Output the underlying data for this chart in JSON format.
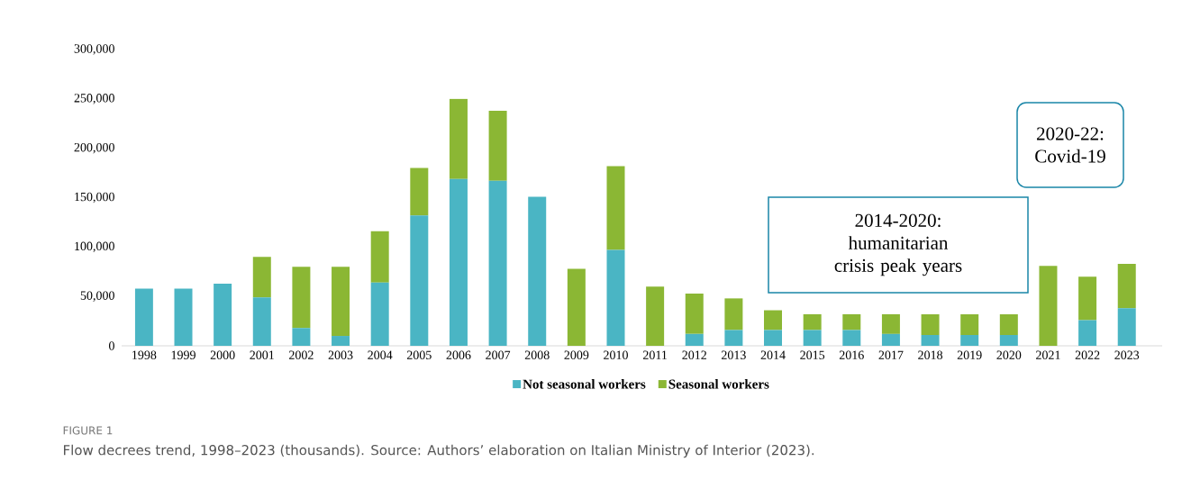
{
  "chart_data": {
    "type": "bar",
    "stacked": true,
    "categories": [
      "1998",
      "1999",
      "2000",
      "2001",
      "2002",
      "2003",
      "2004",
      "2005",
      "2006",
      "2007",
      "2008",
      "2009",
      "2010",
      "2011",
      "2012",
      "2013",
      "2014",
      "2015",
      "2016",
      "2017",
      "2018",
      "2019",
      "2020",
      "2021",
      "2022",
      "2023"
    ],
    "series": [
      {
        "name": "Not seasonal workers",
        "color": "#4ab5c4",
        "values": [
          58000,
          58000,
          63000,
          49000,
          18000,
          10000,
          64000,
          132000,
          169000,
          167000,
          151000,
          0,
          97000,
          0,
          12000,
          16000,
          16000,
          16000,
          16000,
          12000,
          11000,
          11000,
          11000,
          0,
          26000,
          38000
        ]
      },
      {
        "name": "Seasonal workers",
        "color": "#8bb734",
        "values": [
          0,
          0,
          0,
          41000,
          62000,
          70000,
          52000,
          48000,
          81000,
          71000,
          0,
          78000,
          85000,
          60000,
          41000,
          32000,
          20000,
          16000,
          16000,
          20000,
          21000,
          21000,
          21000,
          81000,
          44000,
          45000
        ]
      }
    ],
    "ylim": [
      0,
      300000
    ],
    "yticks": [
      0,
      {
        "value": 50000,
        "label": "50,000"
      },
      {
        "value": 100000,
        "label": "100,000"
      },
      {
        "value": 150000,
        "label": "150,000"
      },
      {
        "value": 200000,
        "label": "200,000"
      },
      {
        "value": 250000,
        "label": "250,000"
      },
      {
        "value": 300000,
        "label": "300,000"
      }
    ],
    "legend": "bottom",
    "annotations": [
      "2014-2020: humanitarian crisis peak years",
      "2020-22: Covid-19",
      "FIGURE 1",
      "Flow decrees trend, 1998–2023 (thousands). Source: Authors’ elaboration on Italian Ministry of Interior (2023)."
    ]
  }
}
